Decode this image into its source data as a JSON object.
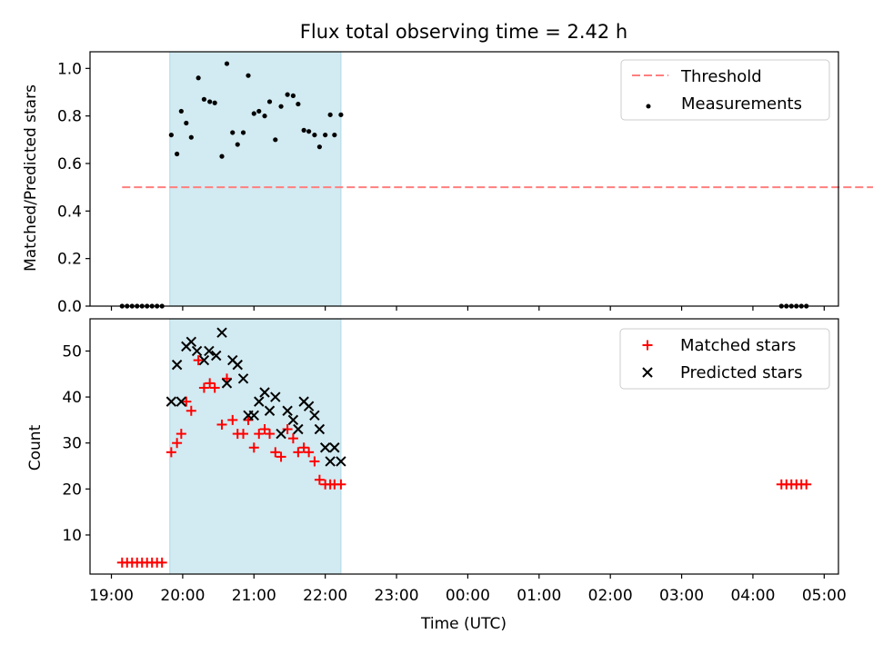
{
  "figure_title": "Flux total observing time = 2.42 h",
  "xlabel": "Time (UTC)",
  "x_ticks": [
    {
      "label": "19:00",
      "h": 19.0
    },
    {
      "label": "20:00",
      "h": 20.0
    },
    {
      "label": "21:00",
      "h": 21.0
    },
    {
      "label": "22:00",
      "h": 22.0
    },
    {
      "label": "23:00",
      "h": 23.0
    },
    {
      "label": "00:00",
      "h": 24.0
    },
    {
      "label": "01:00",
      "h": 25.0
    },
    {
      "label": "02:00",
      "h": 26.0
    },
    {
      "label": "03:00",
      "h": 27.0
    },
    {
      "label": "04:00",
      "h": 28.0
    },
    {
      "label": "05:00",
      "h": 29.0
    }
  ],
  "colors": {
    "threshold": "#ff7f7f",
    "measurements": "#000000",
    "matched": "#ff0000",
    "predicted": "#000000",
    "span_fill": "#add8e6"
  },
  "chart_data": [
    {
      "type": "scatter",
      "ylabel": "Matched/Predicted stars",
      "xlim": [
        18.7,
        29.2
      ],
      "ylim": [
        0.0,
        1.07
      ],
      "y_ticks": [
        0.0,
        0.2,
        0.4,
        0.6,
        0.8,
        1.0
      ],
      "y_tick_labels": [
        "0.0",
        "0.2",
        "0.4",
        "0.6",
        "0.8",
        "1.0"
      ],
      "shaded_span": [
        19.82,
        22.22
      ],
      "legend_position": "upper right",
      "threshold": {
        "name": "Threshold",
        "y": 0.5,
        "x_range": [
          19.15,
          29.75
        ]
      },
      "series": [
        {
          "name": "Measurements",
          "marker": "dot",
          "x": [
            19.15,
            19.22,
            19.29,
            19.36,
            19.43,
            19.5,
            19.57,
            19.64,
            19.71,
            19.84,
            19.92,
            19.98,
            20.05,
            20.12,
            20.22,
            20.3,
            20.38,
            20.45,
            20.55,
            20.62,
            20.7,
            20.77,
            20.85,
            20.92,
            21.0,
            21.07,
            21.15,
            21.22,
            21.3,
            21.38,
            21.47,
            21.55,
            21.62,
            21.7,
            21.77,
            21.85,
            21.92,
            22.0,
            22.07,
            22.13,
            22.22,
            28.4,
            28.47,
            28.54,
            28.61,
            28.68,
            28.75
          ],
          "y": [
            0,
            0,
            0,
            0,
            0,
            0,
            0,
            0,
            0,
            0.72,
            0.64,
            0.82,
            0.77,
            0.71,
            0.96,
            0.87,
            0.86,
            0.855,
            0.63,
            1.02,
            0.73,
            0.68,
            0.73,
            0.97,
            0.81,
            0.82,
            0.8,
            0.86,
            0.7,
            0.84,
            0.89,
            0.885,
            0.85,
            0.74,
            0.735,
            0.72,
            0.67,
            0.72,
            0.805,
            0.72,
            0.805,
            0,
            0,
            0,
            0,
            0,
            0
          ]
        }
      ]
    },
    {
      "type": "scatter",
      "ylabel": "Count",
      "xlim": [
        18.7,
        29.2
      ],
      "ylim": [
        1.5,
        57.0
      ],
      "y_ticks": [
        10,
        20,
        30,
        40,
        50
      ],
      "y_tick_labels": [
        "10",
        "20",
        "30",
        "40",
        "50"
      ],
      "shaded_span": [
        19.82,
        22.22
      ],
      "legend_position": "upper right",
      "series": [
        {
          "name": "Matched stars",
          "marker": "plus",
          "x": [
            19.15,
            19.22,
            19.29,
            19.36,
            19.43,
            19.5,
            19.57,
            19.64,
            19.71,
            19.84,
            19.92,
            19.98,
            20.05,
            20.12,
            20.22,
            20.3,
            20.38,
            20.45,
            20.55,
            20.62,
            20.7,
            20.77,
            20.85,
            20.92,
            21.0,
            21.07,
            21.15,
            21.22,
            21.3,
            21.38,
            21.47,
            21.55,
            21.62,
            21.7,
            21.77,
            21.85,
            21.92,
            22.0,
            22.07,
            22.13,
            22.22,
            28.4,
            28.47,
            28.54,
            28.61,
            28.68,
            28.75
          ],
          "y": [
            4,
            4,
            4,
            4,
            4,
            4,
            4,
            4,
            4,
            28,
            30,
            32,
            39,
            37,
            48,
            42,
            43,
            42,
            34,
            44,
            35,
            32,
            32,
            35,
            29,
            32,
            33,
            32,
            28,
            27,
            33,
            31,
            28,
            29,
            28,
            26,
            22,
            21,
            21,
            21,
            21,
            21,
            21,
            21,
            21,
            21,
            21
          ]
        },
        {
          "name": "Predicted stars",
          "marker": "x",
          "x": [
            19.84,
            19.92,
            19.98,
            20.05,
            20.12,
            20.2,
            20.3,
            20.37,
            20.47,
            20.55,
            20.62,
            20.7,
            20.77,
            20.85,
            20.92,
            21.0,
            21.07,
            21.15,
            21.22,
            21.3,
            21.38,
            21.47,
            21.55,
            21.62,
            21.7,
            21.77,
            21.85,
            21.92,
            22.0,
            22.07,
            22.13,
            22.22
          ],
          "y": [
            39,
            47,
            39,
            51,
            52,
            50,
            48,
            50,
            49,
            54,
            43,
            48,
            47,
            44,
            36,
            36,
            39,
            41,
            37,
            40,
            32,
            37,
            35,
            33,
            39,
            38,
            36,
            33,
            29,
            26,
            29,
            26
          ]
        }
      ]
    }
  ]
}
